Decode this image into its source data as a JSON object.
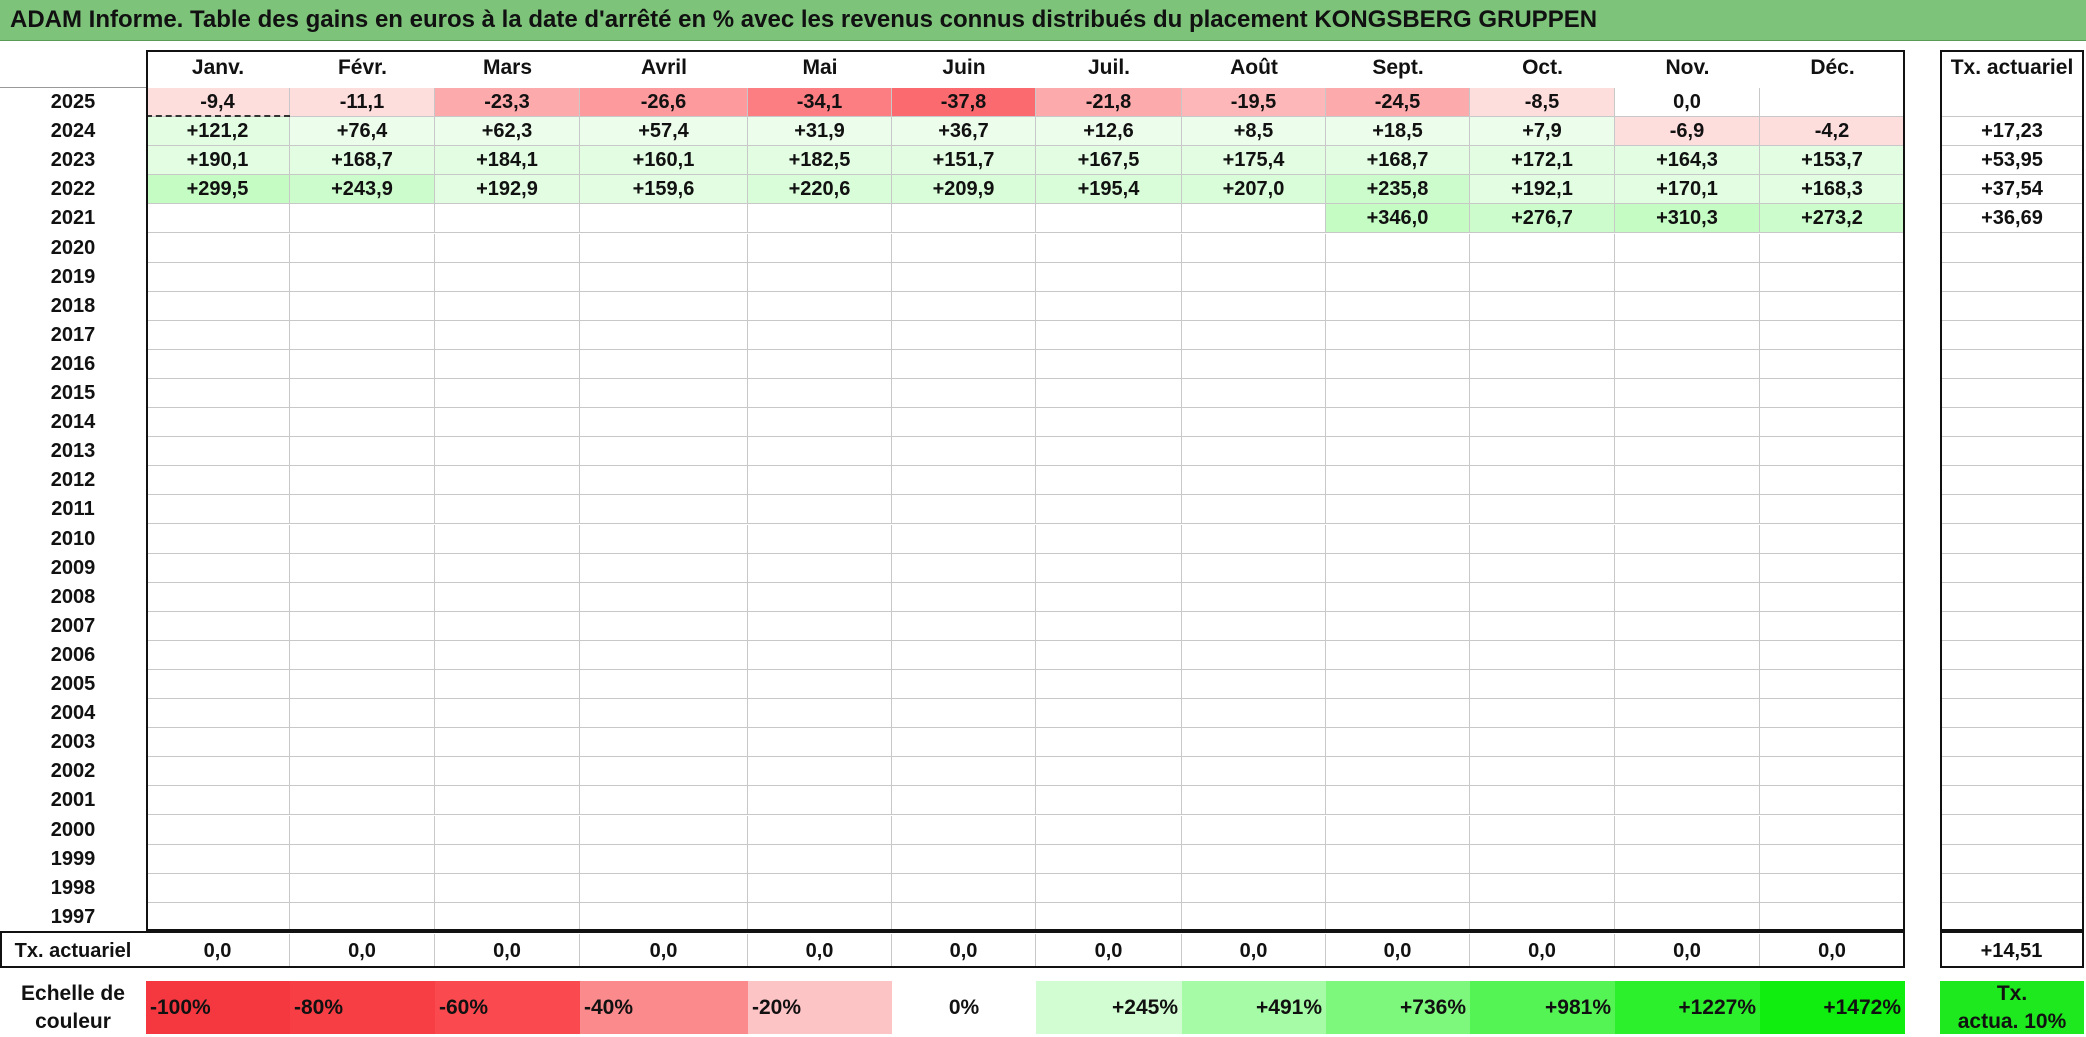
{
  "title": "ADAM Informe. Table des gains en euros à la date d'arrêté en % avec les revenus connus distribués du placement KONGSBERG GRUPPEN",
  "months": [
    "Janv.",
    "Févr.",
    "Mars",
    "Avril",
    "Mai",
    "Juin",
    "Juil.",
    "Août",
    "Sept.",
    "Oct.",
    "Nov.",
    "Déc."
  ],
  "tx_header": "Tx. actuariel",
  "rows": [
    {
      "year": "2025",
      "values": [
        "-9,4",
        "-11,1",
        "-23,3",
        "-26,6",
        "-34,1",
        "-37,8",
        "-21,8",
        "-19,5",
        "-24,5",
        "-8,5",
        "0,0",
        ""
      ],
      "tx": ""
    },
    {
      "year": "2024",
      "values": [
        "+121,2",
        "+76,4",
        "+62,3",
        "+57,4",
        "+31,9",
        "+36,7",
        "+12,6",
        "+8,5",
        "+18,5",
        "+7,9",
        "-6,9",
        "-4,2"
      ],
      "tx": "+17,23"
    },
    {
      "year": "2023",
      "values": [
        "+190,1",
        "+168,7",
        "+184,1",
        "+160,1",
        "+182,5",
        "+151,7",
        "+167,5",
        "+175,4",
        "+168,7",
        "+172,1",
        "+164,3",
        "+153,7"
      ],
      "tx": "+53,95"
    },
    {
      "year": "2022",
      "values": [
        "+299,5",
        "+243,9",
        "+192,9",
        "+159,6",
        "+220,6",
        "+209,9",
        "+195,4",
        "+207,0",
        "+235,8",
        "+192,1",
        "+170,1",
        "+168,3"
      ],
      "tx": "+37,54"
    },
    {
      "year": "2021",
      "values": [
        "",
        "",
        "",
        "",
        "",
        "",
        "",
        "",
        "+346,0",
        "+276,7",
        "+310,3",
        "+273,2"
      ],
      "tx": "+36,69"
    },
    {
      "year": "2020",
      "values": [
        "",
        "",
        "",
        "",
        "",
        "",
        "",
        "",
        "",
        "",
        "",
        ""
      ],
      "tx": ""
    },
    {
      "year": "2019",
      "values": [
        "",
        "",
        "",
        "",
        "",
        "",
        "",
        "",
        "",
        "",
        "",
        ""
      ],
      "tx": ""
    },
    {
      "year": "2018",
      "values": [
        "",
        "",
        "",
        "",
        "",
        "",
        "",
        "",
        "",
        "",
        "",
        ""
      ],
      "tx": ""
    },
    {
      "year": "2017",
      "values": [
        "",
        "",
        "",
        "",
        "",
        "",
        "",
        "",
        "",
        "",
        "",
        ""
      ],
      "tx": ""
    },
    {
      "year": "2016",
      "values": [
        "",
        "",
        "",
        "",
        "",
        "",
        "",
        "",
        "",
        "",
        "",
        ""
      ],
      "tx": ""
    },
    {
      "year": "2015",
      "values": [
        "",
        "",
        "",
        "",
        "",
        "",
        "",
        "",
        "",
        "",
        "",
        ""
      ],
      "tx": ""
    },
    {
      "year": "2014",
      "values": [
        "",
        "",
        "",
        "",
        "",
        "",
        "",
        "",
        "",
        "",
        "",
        ""
      ],
      "tx": ""
    },
    {
      "year": "2013",
      "values": [
        "",
        "",
        "",
        "",
        "",
        "",
        "",
        "",
        "",
        "",
        "",
        ""
      ],
      "tx": ""
    },
    {
      "year": "2012",
      "values": [
        "",
        "",
        "",
        "",
        "",
        "",
        "",
        "",
        "",
        "",
        "",
        ""
      ],
      "tx": ""
    },
    {
      "year": "2011",
      "values": [
        "",
        "",
        "",
        "",
        "",
        "",
        "",
        "",
        "",
        "",
        "",
        ""
      ],
      "tx": ""
    },
    {
      "year": "2010",
      "values": [
        "",
        "",
        "",
        "",
        "",
        "",
        "",
        "",
        "",
        "",
        "",
        ""
      ],
      "tx": ""
    },
    {
      "year": "2009",
      "values": [
        "",
        "",
        "",
        "",
        "",
        "",
        "",
        "",
        "",
        "",
        "",
        ""
      ],
      "tx": ""
    },
    {
      "year": "2008",
      "values": [
        "",
        "",
        "",
        "",
        "",
        "",
        "",
        "",
        "",
        "",
        "",
        ""
      ],
      "tx": ""
    },
    {
      "year": "2007",
      "values": [
        "",
        "",
        "",
        "",
        "",
        "",
        "",
        "",
        "",
        "",
        "",
        ""
      ],
      "tx": ""
    },
    {
      "year": "2006",
      "values": [
        "",
        "",
        "",
        "",
        "",
        "",
        "",
        "",
        "",
        "",
        "",
        ""
      ],
      "tx": ""
    },
    {
      "year": "2005",
      "values": [
        "",
        "",
        "",
        "",
        "",
        "",
        "",
        "",
        "",
        "",
        "",
        ""
      ],
      "tx": ""
    },
    {
      "year": "2004",
      "values": [
        "",
        "",
        "",
        "",
        "",
        "",
        "",
        "",
        "",
        "",
        "",
        ""
      ],
      "tx": ""
    },
    {
      "year": "2003",
      "values": [
        "",
        "",
        "",
        "",
        "",
        "",
        "",
        "",
        "",
        "",
        "",
        ""
      ],
      "tx": ""
    },
    {
      "year": "2002",
      "values": [
        "",
        "",
        "",
        "",
        "",
        "",
        "",
        "",
        "",
        "",
        "",
        ""
      ],
      "tx": ""
    },
    {
      "year": "2001",
      "values": [
        "",
        "",
        "",
        "",
        "",
        "",
        "",
        "",
        "",
        "",
        "",
        ""
      ],
      "tx": ""
    },
    {
      "year": "2000",
      "values": [
        "",
        "",
        "",
        "",
        "",
        "",
        "",
        "",
        "",
        "",
        "",
        ""
      ],
      "tx": ""
    },
    {
      "year": "1999",
      "values": [
        "",
        "",
        "",
        "",
        "",
        "",
        "",
        "",
        "",
        "",
        "",
        ""
      ],
      "tx": ""
    },
    {
      "year": "1998",
      "values": [
        "",
        "",
        "",
        "",
        "",
        "",
        "",
        "",
        "",
        "",
        "",
        ""
      ],
      "tx": ""
    },
    {
      "year": "1997",
      "values": [
        "",
        "",
        "",
        "",
        "",
        "",
        "",
        "",
        "",
        "",
        "",
        ""
      ],
      "tx": ""
    }
  ],
  "bottom": {
    "label": "Tx. actuariel",
    "values": [
      "0,0",
      "0,0",
      "0,0",
      "0,0",
      "0,0",
      "0,0",
      "0,0",
      "0,0",
      "0,0",
      "0,0",
      "0,0",
      "0,0"
    ],
    "tx": "+14,51"
  },
  "scale": {
    "label_line1": "Echelle de",
    "label_line2": "couleur",
    "items": [
      {
        "text": "-100%",
        "color": "#f5383f",
        "align": "left"
      },
      {
        "text": "-80%",
        "color": "#f73e44",
        "align": "left"
      },
      {
        "text": "-60%",
        "color": "#fa4a50",
        "align": "left"
      },
      {
        "text": "-40%",
        "color": "#fb8a8d",
        "align": "left"
      },
      {
        "text": "-20%",
        "color": "#fdc4c6",
        "align": "left"
      },
      {
        "text": "0%",
        "color": "#ffffff",
        "align": "center"
      },
      {
        "text": "+245%",
        "color": "#d2fcd2",
        "align": "right"
      },
      {
        "text": "+491%",
        "color": "#a6fba6",
        "align": "right"
      },
      {
        "text": "+736%",
        "color": "#7df87d",
        "align": "right"
      },
      {
        "text": "+981%",
        "color": "#55f455",
        "align": "right"
      },
      {
        "text": "+1227%",
        "color": "#2df02d",
        "align": "right"
      },
      {
        "text": "+1472%",
        "color": "#0fee0f",
        "align": "right"
      }
    ],
    "tx_line1": "Tx.",
    "tx_line2": "actua. 10%",
    "tx_color": "#1ee81e"
  }
}
